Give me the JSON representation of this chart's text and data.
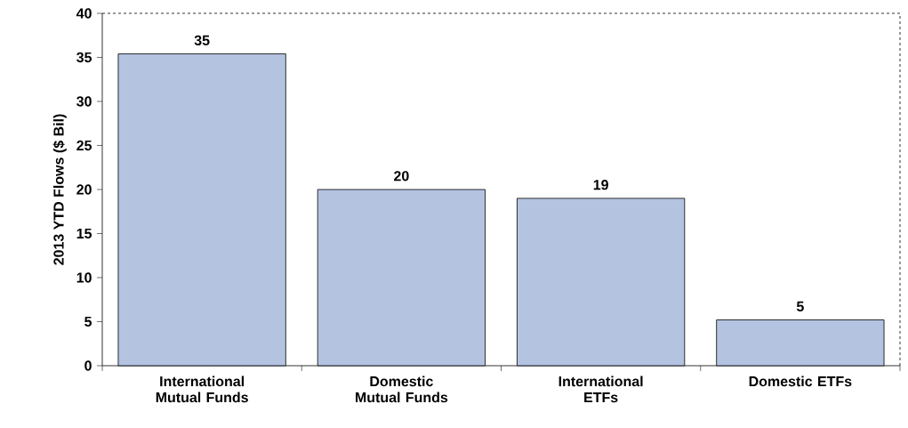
{
  "chart_data": {
    "type": "bar",
    "ylabel": "2013 YTD Flows ($ Bil)",
    "categories": [
      "International Mutual Funds",
      "Domestic Mutual Funds",
      "International ETFs",
      "Domestic ETFs"
    ],
    "values": [
      35.4,
      20,
      19,
      5.2
    ],
    "value_labels": [
      "35",
      "20",
      "19",
      "5"
    ],
    "color": "#b4c3e0",
    "ylim": [
      0,
      40
    ],
    "yticks": [
      0,
      5,
      10,
      15,
      20,
      25,
      30,
      35,
      40
    ]
  }
}
